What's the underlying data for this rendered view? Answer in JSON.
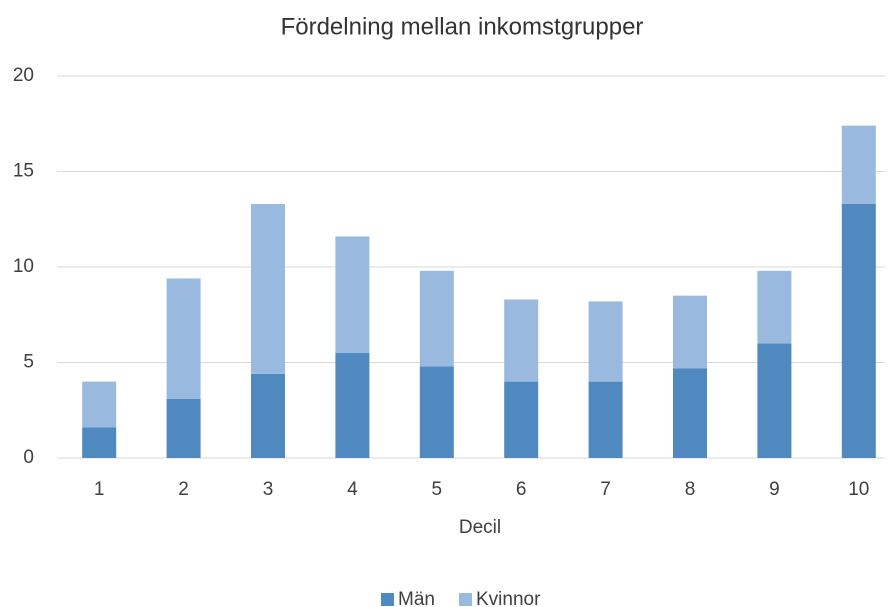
{
  "chart_data": {
    "type": "stacked_bar",
    "title": "Fördelning mellan inkomstgrupper",
    "x_label": "Decil",
    "categories": [
      "1",
      "2",
      "3",
      "4",
      "5",
      "6",
      "7",
      "8",
      "9",
      "10"
    ],
    "series": [
      {
        "name": "Män",
        "color": "#4f89c0",
        "values": [
          1.6,
          3.1,
          4.4,
          5.5,
          4.8,
          4.0,
          4.0,
          4.7,
          6.0,
          13.3
        ]
      },
      {
        "name": "Kvinnor",
        "color": "#9ab9df",
        "values": [
          2.4,
          6.3,
          8.9,
          6.1,
          5.0,
          4.3,
          4.2,
          3.8,
          3.8,
          4.1
        ]
      }
    ],
    "ylim": [
      0,
      20
    ],
    "yticks": [
      0,
      5,
      10,
      15,
      20
    ],
    "grid": true,
    "legend": "bottom"
  }
}
